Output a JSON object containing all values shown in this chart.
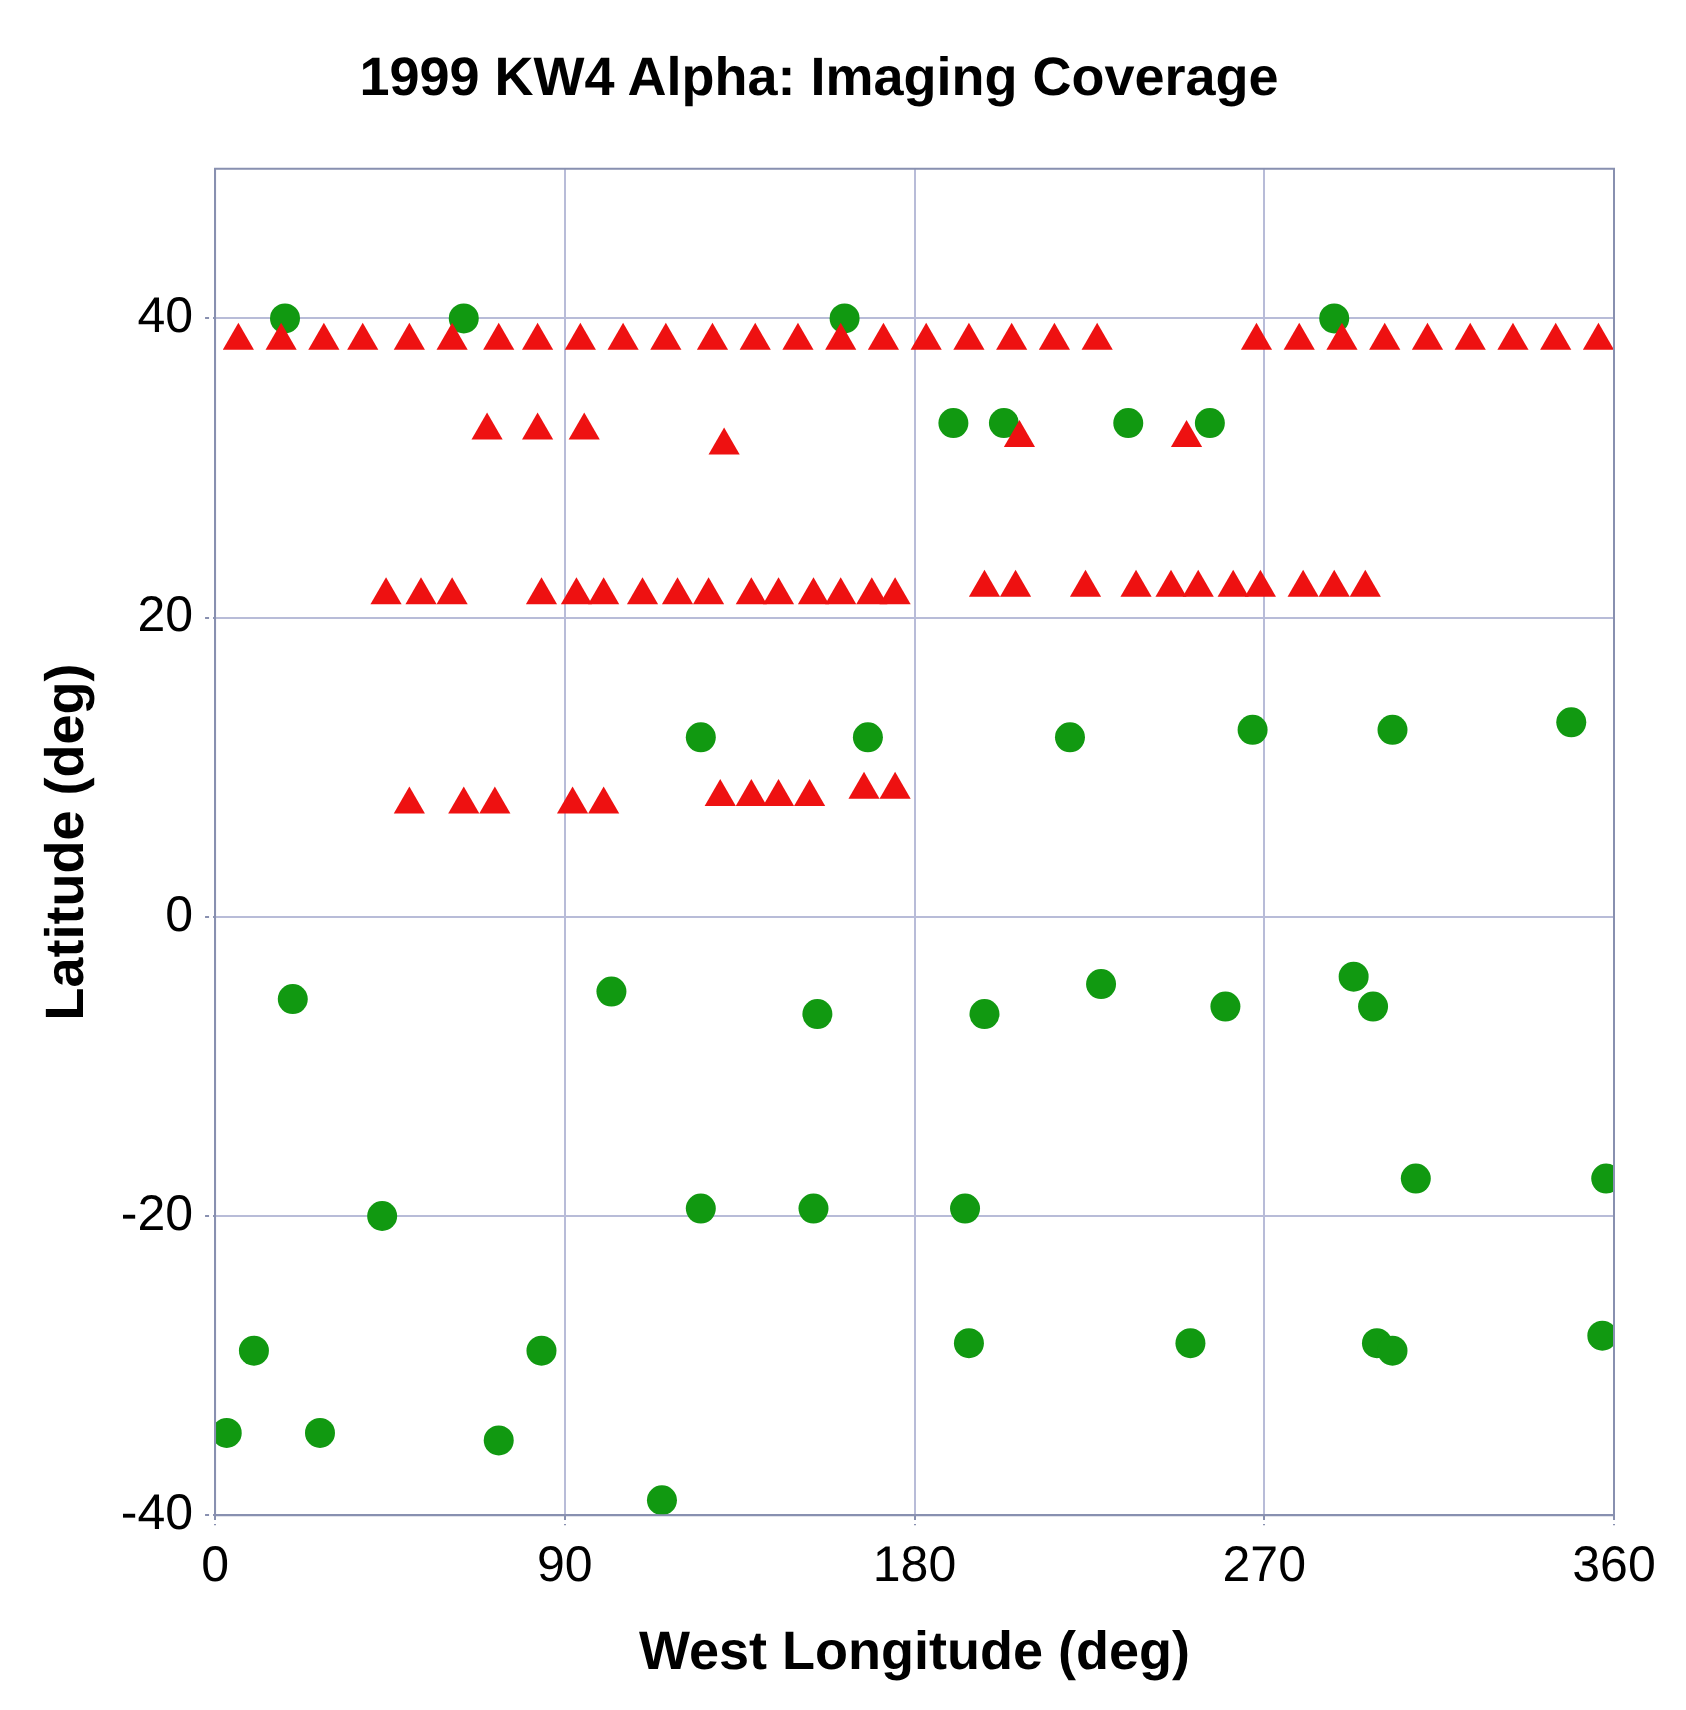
{
  "chart_data": {
    "type": "scatter",
    "title": "1999 KW4 Alpha: Imaging Coverage",
    "xlabel": "West Longitude (deg)",
    "ylabel": "Latitude (deg)",
    "xlim": [
      0,
      360
    ],
    "xticks": [
      0,
      90,
      180,
      270,
      360
    ],
    "ylim": [
      -40,
      50
    ],
    "yticks": [
      -40,
      -20,
      0,
      20,
      40
    ],
    "grid": true,
    "series": [
      {
        "color": "#ee1111",
        "marker": "triangle",
        "x": [
          6,
          17,
          28,
          38,
          50,
          61,
          73,
          83,
          94,
          105,
          116,
          128,
          139,
          150,
          161,
          172,
          183,
          194,
          205,
          216,
          227,
          268,
          279,
          290,
          301,
          312,
          323,
          334,
          345,
          356,
          70,
          83,
          95,
          131,
          207,
          250,
          44,
          53,
          61,
          84,
          93,
          100,
          110,
          119,
          127,
          138,
          145,
          154,
          161,
          169,
          175,
          198,
          206,
          224,
          237,
          246,
          253,
          262,
          269,
          280,
          288,
          296,
          50,
          64,
          72,
          92,
          100,
          130,
          138,
          145,
          153,
          167,
          175
        ],
        "values": [
          38.5,
          38.5,
          38.5,
          38.5,
          38.5,
          38.5,
          38.5,
          38.5,
          38.5,
          38.5,
          38.5,
          38.5,
          38.5,
          38.5,
          38.5,
          38.5,
          38.5,
          38.5,
          38.5,
          38.5,
          38.5,
          38.5,
          38.5,
          38.5,
          38.5,
          38.5,
          38.5,
          38.5,
          38.5,
          38.5,
          32.5,
          32.5,
          32.5,
          31.5,
          32,
          32,
          21.5,
          21.5,
          21.5,
          21.5,
          21.5,
          21.5,
          21.5,
          21.5,
          21.5,
          21.5,
          21.5,
          21.5,
          21.5,
          21.5,
          21.5,
          22,
          22,
          22,
          22,
          22,
          22,
          22,
          22,
          22,
          22,
          22,
          7.5,
          7.5,
          7.5,
          7.5,
          7.5,
          8,
          8,
          8,
          8,
          8.5,
          8.5
        ]
      },
      {
        "color": "#119911",
        "marker": "circle",
        "x": [
          18,
          64,
          162,
          288,
          190,
          203,
          235,
          256,
          125,
          168,
          220,
          267,
          303,
          349,
          20,
          102,
          155,
          43,
          125,
          154,
          10,
          84,
          3,
          27,
          73,
          115,
          198,
          228,
          260,
          293,
          298,
          309,
          358,
          193,
          194,
          251,
          299,
          303,
          357
        ],
        "values": [
          40,
          40,
          40,
          40,
          33,
          33,
          33,
          33,
          12,
          12,
          12,
          12.5,
          12.5,
          13,
          -5.5,
          -5,
          -6.5,
          -20,
          -19.5,
          -19.5,
          -29,
          -29,
          -34.5,
          -34.5,
          -35,
          -39,
          -6.5,
          -4.5,
          -6,
          -4,
          -6,
          -17.5,
          -17.5,
          -19.5,
          -28.5,
          -28.5,
          -28.5,
          -29,
          -28
        ]
      }
    ]
  }
}
